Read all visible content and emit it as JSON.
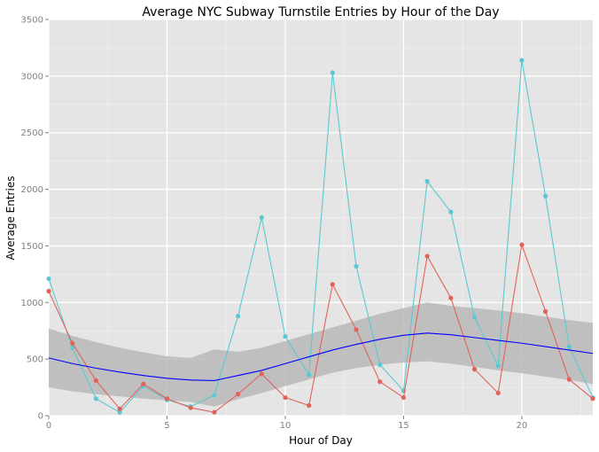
{
  "chart_data": {
    "type": "line",
    "title": "Average NYC Subway Turnstile Entries by Hour of the Day",
    "xlabel": "Hour of Day",
    "ylabel": "Average Entries",
    "xlim": [
      0,
      23
    ],
    "ylim": [
      0,
      3500
    ],
    "x_ticks": [
      0,
      5,
      10,
      15,
      20
    ],
    "y_ticks": [
      0,
      500,
      1000,
      1500,
      2000,
      2500,
      3000,
      3500
    ],
    "grid": true,
    "legend": "none",
    "colors": {
      "panel_background": "#e5e5e5",
      "grid_major": "#ffffff",
      "grid_minor": "#f2f2f2",
      "smooth_band": "#b8b8b8",
      "smooth_line": "#0000ff"
    },
    "x": [
      0,
      1,
      2,
      3,
      4,
      5,
      6,
      7,
      8,
      9,
      10,
      11,
      12,
      13,
      14,
      15,
      16,
      17,
      18,
      19,
      20,
      21,
      22,
      23
    ],
    "series": [
      {
        "color": "#5bc8d0",
        "values": [
          1210,
          600,
          150,
          30,
          260,
          140,
          80,
          180,
          880,
          1750,
          700,
          360,
          3030,
          1320,
          450,
          220,
          2070,
          1800,
          870,
          440,
          3140,
          1940,
          610,
          160
        ]
      },
      {
        "color": "#e0635a",
        "values": [
          1100,
          640,
          310,
          60,
          280,
          150,
          70,
          30,
          190,
          370,
          160,
          90,
          1160,
          760,
          300,
          160,
          1410,
          1040,
          410,
          200,
          1510,
          920,
          320,
          150
        ]
      }
    ],
    "smooth": {
      "x": [
        0,
        1,
        2,
        3,
        4,
        5,
        6,
        7,
        8,
        9,
        10,
        11,
        12,
        13,
        14,
        15,
        16,
        17,
        18,
        19,
        20,
        21,
        22,
        23
      ],
      "fit": [
        510,
        460,
        420,
        385,
        355,
        330,
        315,
        310,
        355,
        400,
        460,
        520,
        580,
        630,
        675,
        710,
        730,
        715,
        690,
        665,
        640,
        610,
        580,
        550
      ],
      "lower": [
        250,
        215,
        190,
        170,
        150,
        135,
        120,
        80,
        145,
        200,
        260,
        320,
        380,
        420,
        450,
        470,
        480,
        460,
        430,
        400,
        375,
        345,
        315,
        280
      ],
      "upper": [
        770,
        705,
        650,
        600,
        560,
        525,
        510,
        585,
        565,
        600,
        660,
        720,
        780,
        840,
        900,
        950,
        1000,
        970,
        950,
        930,
        905,
        875,
        845,
        820
      ]
    }
  }
}
